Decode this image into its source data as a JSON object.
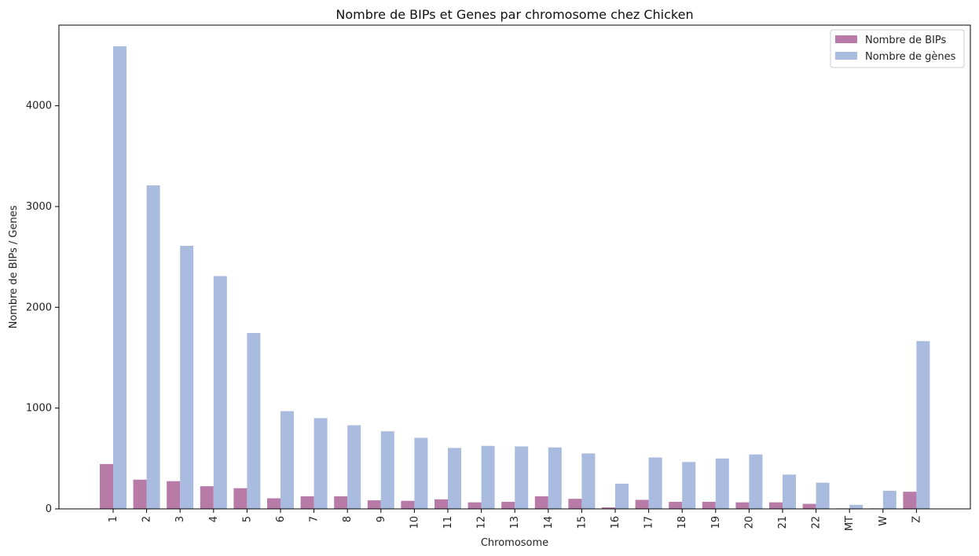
{
  "chart_data": {
    "type": "bar",
    "title": "Nombre de BIPs et Genes par chromosome chez Chicken",
    "xlabel": "Chromosome",
    "ylabel": "Nombre de BIPs / Genes",
    "ylim": [
      0,
      4800
    ],
    "yticks": [
      0,
      1000,
      2000,
      3000,
      4000
    ],
    "grid": false,
    "legend_position": "top-right",
    "categories": [
      "1",
      "2",
      "3",
      "4",
      "5",
      "6",
      "7",
      "8",
      "9",
      "10",
      "11",
      "12",
      "13",
      "14",
      "15",
      "16",
      "17",
      "18",
      "19",
      "20",
      "21",
      "22",
      "MT",
      "W",
      "Z"
    ],
    "series": [
      {
        "name": "Nombre de BIPs",
        "color": "#b87ba8",
        "values": [
          445,
          290,
          275,
          225,
          205,
          105,
          125,
          125,
          85,
          80,
          95,
          65,
          70,
          125,
          100,
          15,
          90,
          70,
          70,
          65,
          65,
          50,
          5,
          5,
          170
        ]
      },
      {
        "name": "Nombre de gènes",
        "color": "#aabbe0",
        "values": [
          4590,
          3210,
          2610,
          2310,
          1745,
          970,
          900,
          830,
          770,
          705,
          605,
          625,
          620,
          610,
          550,
          250,
          510,
          465,
          500,
          540,
          340,
          260,
          40,
          180,
          1665
        ]
      }
    ]
  }
}
